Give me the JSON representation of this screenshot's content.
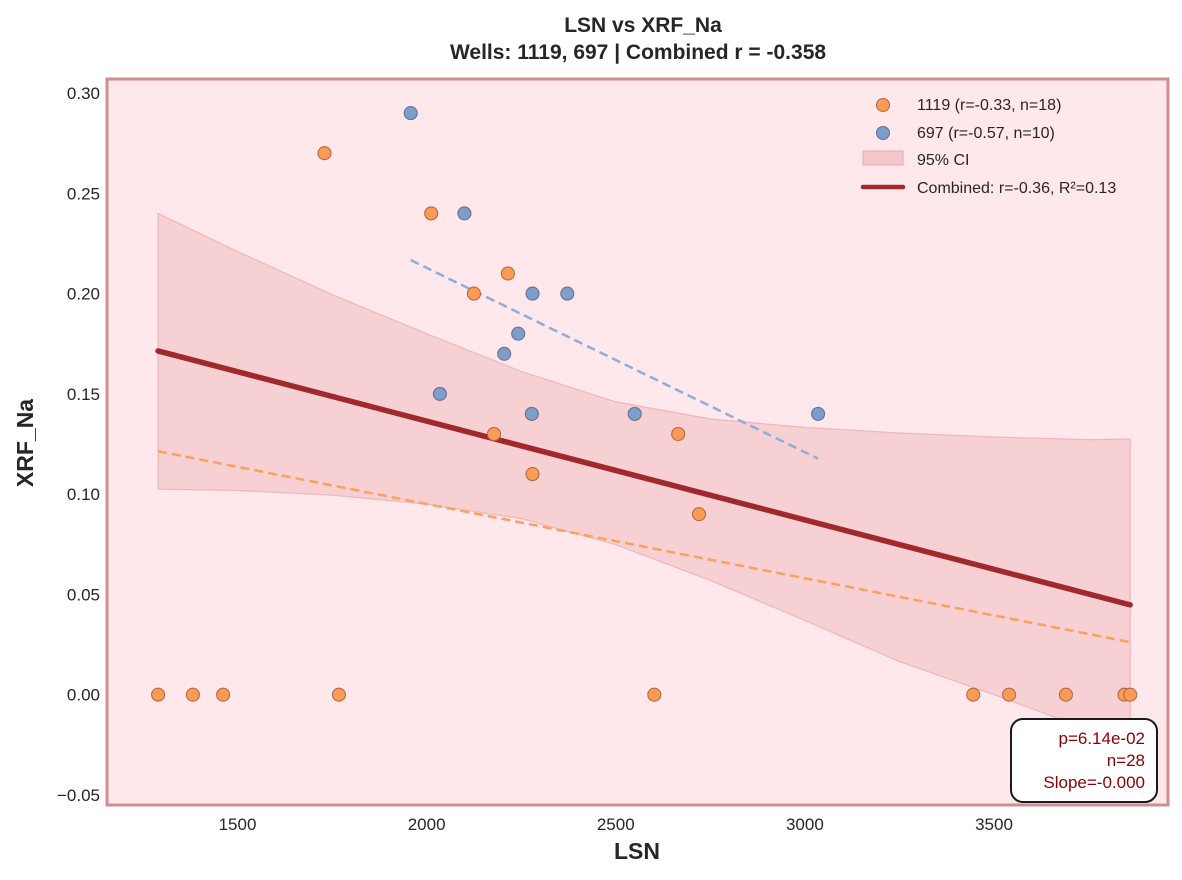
{
  "chart_data": {
    "type": "scatter",
    "title": "LSN vs XRF_Na",
    "subtitle": "Wells: 1119, 697 | Combined r = -0.358",
    "xlabel": "LSN",
    "ylabel": "XRF_Na",
    "xlim": [
      1155,
      3960
    ],
    "ylim": [
      -0.055,
      0.307
    ],
    "xticks": [
      1500,
      2000,
      2500,
      3000,
      3500
    ],
    "xtick_labels": [
      "1500",
      "2000",
      "2500",
      "3000",
      "3500"
    ],
    "yticks": [
      0.3,
      0.25,
      0.2,
      0.15,
      0.1,
      0.05,
      0.0,
      -0.05
    ],
    "ytick_labels": [
      "0.30",
      "0.25",
      "0.20",
      "0.15",
      "0.10",
      "0.05",
      "0.00",
      "−0.05"
    ],
    "grid": false,
    "legend_position": "top-right",
    "series": [
      {
        "name": "1119",
        "legend_label": "1119 (r=-0.33, n=18)",
        "color": "#fd9a54",
        "edge_color": "#b06a4a",
        "points": [
          [
            1730,
            0.27
          ],
          [
            2012,
            0.24
          ],
          [
            2125,
            0.2
          ],
          [
            2215,
            0.21
          ],
          [
            2178,
            0.13
          ],
          [
            2280,
            0.11
          ],
          [
            2665,
            0.13
          ],
          [
            2720,
            0.09
          ],
          [
            1290,
            0.0
          ],
          [
            1382,
            0.0
          ],
          [
            1462,
            0.0
          ],
          [
            1768,
            0.0
          ],
          [
            2602,
            0.0
          ],
          [
            3445,
            0.0
          ],
          [
            3540,
            0.0
          ],
          [
            3690,
            0.0
          ],
          [
            3845,
            0.0
          ],
          [
            3860,
            0.0
          ]
        ],
        "fit": {
          "x": [
            1290,
            3860
          ],
          "y": [
            0.1214,
            0.0262
          ],
          "color": "#fda05f"
        }
      },
      {
        "name": "697",
        "legend_label": "697 (r=-0.57, n=10)",
        "color": "#7b9ecb",
        "edge_color": "#6f6f8f",
        "points": [
          [
            1958,
            0.29
          ],
          [
            2100,
            0.24
          ],
          [
            2280,
            0.2
          ],
          [
            2372,
            0.2
          ],
          [
            2242,
            0.18
          ],
          [
            2205,
            0.17
          ],
          [
            2035,
            0.15
          ],
          [
            2278,
            0.14
          ],
          [
            2550,
            0.14
          ],
          [
            3035,
            0.14
          ]
        ],
        "fit": {
          "x": [
            1958,
            3035
          ],
          "y": [
            0.2167,
            0.1177
          ],
          "color": "#8eaed6"
        }
      }
    ],
    "combined_fit": {
      "label": "Combined: r=-0.36, R²=0.13",
      "x": [
        1290,
        3860
      ],
      "y": [
        0.1714,
        0.0448
      ],
      "color": "#a0292e"
    },
    "confidence_band": {
      "label": "95% CI",
      "color": "#e8a8ae",
      "x": [
        1290,
        1500,
        1750,
        2000,
        2250,
        2500,
        2750,
        3000,
        3250,
        3500,
        3750,
        3860
      ],
      "upper": [
        0.24,
        0.221,
        0.1995,
        0.18,
        0.1612,
        0.146,
        0.1375,
        0.1333,
        0.1305,
        0.1285,
        0.1272,
        0.1275
      ],
      "lower": [
        0.1025,
        0.1018,
        0.0995,
        0.095,
        0.0878,
        0.0748,
        0.057,
        0.037,
        0.0165,
        0.0,
        -0.0175,
        -0.025
      ]
    },
    "stats_box": {
      "lines": [
        "p=6.14e-02",
        "n=28",
        "Slope=-0.000"
      ],
      "text_color": "#8b0000"
    },
    "colors": {
      "plot_background": "#ffe8eb",
      "plot_border": "#cf8e90",
      "page_background": "#ffffff"
    }
  }
}
